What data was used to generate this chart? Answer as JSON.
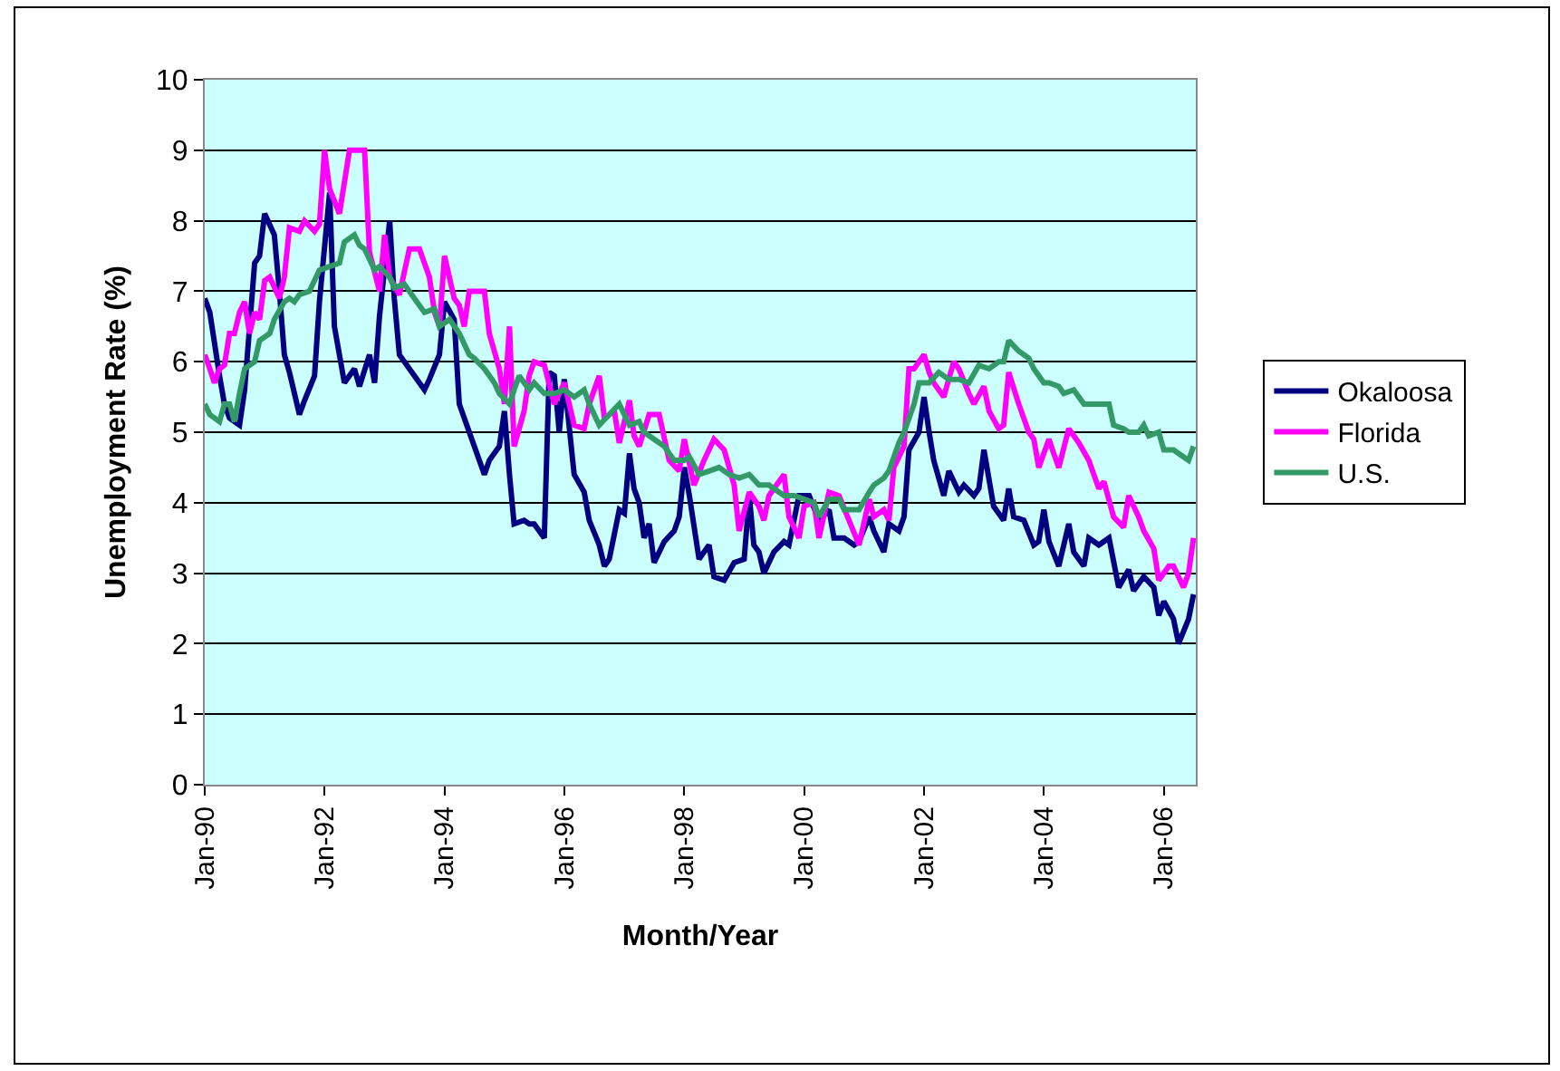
{
  "chart_data": {
    "type": "line",
    "xlabel": "Month/Year",
    "ylabel": "Unemployment Rate (%)",
    "ylim": [
      0,
      10
    ],
    "yticks": [
      0,
      1,
      2,
      3,
      4,
      5,
      6,
      7,
      8,
      9,
      10
    ],
    "xlim": [
      "1990-01-01",
      "2006-07-15"
    ],
    "xticks": [
      {
        "value": "1990-01",
        "label": "Jan-90"
      },
      {
        "value": "1992-01",
        "label": "Jan-92"
      },
      {
        "value": "1994-01",
        "label": "Jan-94"
      },
      {
        "value": "1996-01",
        "label": "Jan-96"
      },
      {
        "value": "1998-01",
        "label": "Jan-98"
      },
      {
        "value": "2000-01",
        "label": "Jan-00"
      },
      {
        "value": "2002-01",
        "label": "Jan-02"
      },
      {
        "value": "2004-01",
        "label": "Jan-04"
      },
      {
        "value": "2006-01",
        "label": "Jan-06"
      }
    ],
    "grid": "y",
    "legend": "right",
    "marker": "none",
    "line_style": "solid",
    "series": [
      {
        "name": "Okaloosa",
        "color": "#000080",
        "x": [
          "1990-01",
          "1990-02",
          "1990-04",
          "1990-05",
          "1990-06",
          "1990-08",
          "1990-09",
          "1990-11",
          "1990-12",
          "1991-01",
          "1991-03",
          "1991-04",
          "1991-05",
          "1991-06",
          "1991-08",
          "1991-09",
          "1991-11",
          "1991-12",
          "1992-02",
          "1992-03",
          "1992-05",
          "1992-07",
          "1992-08",
          "1992-10",
          "1992-11",
          "1992-12",
          "1993-02",
          "1993-03",
          "1993-04",
          "1993-06",
          "1993-09",
          "1993-10",
          "1993-12",
          "1994-01",
          "1994-03",
          "1994-04",
          "1994-06",
          "1994-09",
          "1994-10",
          "1994-12",
          "1995-01",
          "1995-02",
          "1995-03",
          "1995-05",
          "1995-06",
          "1995-07",
          "1995-09",
          "1995-10",
          "1995-11",
          "1995-12",
          "1996-01",
          "1996-03",
          "1996-05",
          "1996-06",
          "1996-08",
          "1996-09",
          "1996-10",
          "1996-12",
          "1997-01",
          "1997-02",
          "1997-03",
          "1997-04",
          "1997-05",
          "1997-06",
          "1997-07",
          "1997-09",
          "1997-11",
          "1997-12",
          "1998-01",
          "1998-02",
          "1998-04",
          "1998-06",
          "1998-07",
          "1998-09",
          "1998-11",
          "1999-01",
          "1999-02",
          "1999-03",
          "1999-04",
          "1999-05",
          "1999-07",
          "1999-09",
          "1999-10",
          "1999-12",
          "2000-02",
          "2000-04",
          "2000-06",
          "2000-07",
          "2000-09",
          "2000-11",
          "2000-12",
          "2001-02",
          "2001-03",
          "2001-05",
          "2001-06",
          "2001-08",
          "2001-09",
          "2001-10",
          "2001-12",
          "2002-01",
          "2002-02",
          "2002-03",
          "2002-05",
          "2002-06",
          "2002-08",
          "2002-09",
          "2002-11",
          "2002-12",
          "2003-01",
          "2003-03",
          "2003-05",
          "2003-06",
          "2003-07",
          "2003-09",
          "2003-11",
          "2003-12",
          "2004-01",
          "2004-02",
          "2004-04",
          "2004-06",
          "2004-07",
          "2004-09",
          "2004-10",
          "2004-12",
          "2005-02",
          "2005-04",
          "2005-06",
          "2005-07",
          "2005-09",
          "2005-11",
          "2005-12",
          "2006-01",
          "2006-03",
          "2006-04",
          "2006-06",
          "2006-07"
        ],
        "values": [
          6.9,
          6.7,
          5.8,
          5.4,
          5.2,
          5.1,
          5.6,
          7.4,
          7.5,
          8.1,
          7.8,
          7.0,
          6.1,
          5.85,
          5.25,
          5.45,
          5.8,
          6.85,
          8.4,
          6.5,
          5.7,
          5.9,
          5.65,
          6.1,
          5.7,
          6.65,
          8.0,
          6.9,
          6.1,
          5.9,
          5.6,
          5.75,
          6.1,
          6.85,
          6.6,
          5.4,
          5.0,
          4.4,
          4.6,
          4.8,
          5.3,
          4.4,
          3.7,
          3.75,
          3.7,
          3.7,
          3.5,
          5.85,
          5.8,
          5.0,
          5.75,
          4.4,
          4.15,
          3.75,
          3.4,
          3.1,
          3.2,
          3.9,
          3.85,
          4.7,
          4.2,
          4.0,
          3.5,
          3.7,
          3.15,
          3.45,
          3.6,
          3.8,
          4.5,
          4.1,
          3.2,
          3.4,
          2.95,
          2.9,
          3.15,
          3.2,
          4.1,
          3.4,
          3.3,
          3.0,
          3.3,
          3.45,
          3.4,
          4.1,
          4.1,
          3.75,
          3.9,
          3.5,
          3.5,
          3.4,
          3.45,
          3.8,
          3.6,
          3.3,
          3.7,
          3.6,
          3.8,
          4.75,
          5.0,
          5.5,
          5.0,
          4.6,
          4.1,
          4.45,
          4.15,
          4.25,
          4.1,
          4.2,
          4.75,
          3.95,
          3.75,
          4.2,
          3.8,
          3.75,
          3.4,
          3.45,
          3.9,
          3.45,
          3.1,
          3.7,
          3.3,
          3.1,
          3.5,
          3.4,
          3.5,
          2.8,
          3.05,
          2.75,
          2.95,
          2.8,
          2.4,
          2.6,
          2.35,
          2.0,
          2.35,
          2.7
        ]
      },
      {
        "name": "Florida",
        "color": "#ff00ff",
        "x": [
          "1990-01",
          "1990-02",
          "1990-03",
          "1990-04",
          "1990-05",
          "1990-06",
          "1990-07",
          "1990-08",
          "1990-09",
          "1990-10",
          "1990-11",
          "1990-12",
          "1991-01",
          "1991-02",
          "1991-04",
          "1991-05",
          "1991-06",
          "1991-08",
          "1991-09",
          "1991-11",
          "1991-12",
          "1992-01",
          "1992-02",
          "1992-04",
          "1992-06",
          "1992-09",
          "1992-10",
          "1992-12",
          "1993-01",
          "1993-02",
          "1993-04",
          "1993-06",
          "1993-08",
          "1993-10",
          "1993-11",
          "1993-12",
          "1994-01",
          "1994-03",
          "1994-04",
          "1994-05",
          "1994-06",
          "1994-09",
          "1994-10",
          "1994-12",
          "1995-01",
          "1995-02",
          "1995-03",
          "1995-04",
          "1995-05",
          "1995-06",
          "1995-07",
          "1995-09",
          "1995-11",
          "1996-01",
          "1996-03",
          "1996-05",
          "1996-06",
          "1996-08",
          "1996-09",
          "1996-11",
          "1996-12",
          "1997-02",
          "1997-03",
          "1997-04",
          "1997-06",
          "1997-08",
          "1997-10",
          "1997-12",
          "1998-01",
          "1998-03",
          "1998-05",
          "1998-07",
          "1998-09",
          "1998-11",
          "1998-12",
          "1999-02",
          "1999-04",
          "1999-05",
          "1999-06",
          "1999-09",
          "1999-10",
          "1999-12",
          "2000-01",
          "2000-03",
          "2000-04",
          "2000-06",
          "2000-08",
          "2000-10",
          "2000-12",
          "2001-02",
          "2001-03",
          "2001-05",
          "2001-06",
          "2001-07",
          "2001-09",
          "2001-10",
          "2001-11",
          "2002-01",
          "2002-02",
          "2002-03",
          "2002-05",
          "2002-07",
          "2002-08",
          "2002-10",
          "2002-11",
          "2003-01",
          "2003-02",
          "2003-04",
          "2003-05",
          "2003-06",
          "2003-08",
          "2003-10",
          "2003-11",
          "2003-12",
          "2004-02",
          "2004-03",
          "2004-04",
          "2004-06",
          "2004-08",
          "2004-10",
          "2004-12",
          "2005-01",
          "2005-03",
          "2005-05",
          "2005-06",
          "2005-08",
          "2005-09",
          "2005-11",
          "2005-12",
          "2006-02",
          "2006-03",
          "2006-05",
          "2006-06",
          "2006-07"
        ],
        "values": [
          6.1,
          5.9,
          5.7,
          5.9,
          5.95,
          6.4,
          6.4,
          6.7,
          6.85,
          6.4,
          6.7,
          6.6,
          7.15,
          7.2,
          6.9,
          7.2,
          7.9,
          7.85,
          8.0,
          7.85,
          7.95,
          9.0,
          8.45,
          8.1,
          9.0,
          9.0,
          7.55,
          7.0,
          7.8,
          7.2,
          6.95,
          7.6,
          7.6,
          7.2,
          6.7,
          6.5,
          7.5,
          6.9,
          6.8,
          6.5,
          7.0,
          7.0,
          6.4,
          5.9,
          5.4,
          6.5,
          4.8,
          5.05,
          5.3,
          5.8,
          6.0,
          5.95,
          5.4,
          5.7,
          5.1,
          5.05,
          5.4,
          5.8,
          5.2,
          5.3,
          4.85,
          5.45,
          4.95,
          4.8,
          5.25,
          5.25,
          4.6,
          4.45,
          4.9,
          4.25,
          4.6,
          4.9,
          4.75,
          4.25,
          3.6,
          4.15,
          3.95,
          3.75,
          4.1,
          4.4,
          3.8,
          3.5,
          3.95,
          4.0,
          3.5,
          4.15,
          4.1,
          3.75,
          3.4,
          4.05,
          3.8,
          3.9,
          3.75,
          4.5,
          4.8,
          5.9,
          5.9,
          6.1,
          5.85,
          5.7,
          5.5,
          6.0,
          5.9,
          5.55,
          5.4,
          5.65,
          5.3,
          5.05,
          5.1,
          5.85,
          5.4,
          5.0,
          4.9,
          4.5,
          4.9,
          4.7,
          4.5,
          5.05,
          4.85,
          4.6,
          4.2,
          4.3,
          3.8,
          3.65,
          4.1,
          3.8,
          3.6,
          3.35,
          2.9,
          3.1,
          3.1,
          2.8,
          3.0,
          3.5
        ]
      },
      {
        "name": "U.S.",
        "color": "#339966",
        "x": [
          "1990-01",
          "1990-02",
          "1990-04",
          "1990-05",
          "1990-06",
          "1990-07",
          "1990-08",
          "1990-09",
          "1990-11",
          "1990-12",
          "1991-02",
          "1991-03",
          "1991-05",
          "1991-06",
          "1991-07",
          "1991-08",
          "1991-10",
          "1991-12",
          "1992-02",
          "1992-04",
          "1992-05",
          "1992-07",
          "1992-08",
          "1992-09",
          "1992-11",
          "1992-12",
          "1993-02",
          "1993-03",
          "1993-05",
          "1993-07",
          "1993-09",
          "1993-11",
          "1993-12",
          "1994-02",
          "1994-04",
          "1994-06",
          "1994-07",
          "1994-09",
          "1994-11",
          "1994-12",
          "1995-02",
          "1995-03",
          "1995-04",
          "1995-06",
          "1995-07",
          "1995-09",
          "1995-11",
          "1996-01",
          "1996-03",
          "1996-05",
          "1996-06",
          "1996-08",
          "1996-10",
          "1996-12",
          "1997-02",
          "1997-04",
          "1997-05",
          "1997-07",
          "1997-09",
          "1997-11",
          "1998-01",
          "1998-02",
          "1998-04",
          "1998-06",
          "1998-08",
          "1998-10",
          "1998-12",
          "1999-02",
          "1999-04",
          "1999-06",
          "1999-07",
          "1999-09",
          "1999-11",
          "2000-01",
          "2000-03",
          "2000-04",
          "2000-06",
          "2000-08",
          "2000-09",
          "2000-11",
          "2000-12",
          "2001-02",
          "2001-03",
          "2001-05",
          "2001-06",
          "2001-08",
          "2001-09",
          "2001-11",
          "2001-12",
          "2002-02",
          "2002-04",
          "2002-06",
          "2002-08",
          "2002-10",
          "2002-12",
          "2003-02",
          "2003-04",
          "2003-05",
          "2003-06",
          "2003-08",
          "2003-10",
          "2003-11",
          "2004-01",
          "2004-02",
          "2004-04",
          "2004-05",
          "2004-07",
          "2004-09",
          "2004-10",
          "2004-12",
          "2005-02",
          "2005-03",
          "2005-05",
          "2005-06",
          "2005-08",
          "2005-09",
          "2005-10",
          "2005-12",
          "2006-01",
          "2006-03",
          "2006-05",
          "2006-06",
          "2006-07"
        ],
        "values": [
          5.4,
          5.25,
          5.15,
          5.4,
          5.4,
          5.15,
          5.55,
          5.9,
          6.0,
          6.3,
          6.4,
          6.6,
          6.85,
          6.9,
          6.85,
          6.95,
          7.0,
          7.3,
          7.35,
          7.4,
          7.7,
          7.8,
          7.65,
          7.6,
          7.3,
          7.35,
          7.2,
          7.05,
          7.1,
          6.9,
          6.7,
          6.75,
          6.5,
          6.6,
          6.4,
          6.1,
          6.05,
          5.9,
          5.7,
          5.55,
          5.4,
          5.6,
          5.8,
          5.6,
          5.7,
          5.55,
          5.55,
          5.6,
          5.5,
          5.6,
          5.4,
          5.1,
          5.25,
          5.4,
          5.1,
          5.15,
          5.0,
          4.9,
          4.8,
          4.6,
          4.6,
          4.65,
          4.4,
          4.45,
          4.5,
          4.4,
          4.35,
          4.4,
          4.25,
          4.25,
          4.2,
          4.1,
          4.1,
          4.05,
          4.0,
          3.8,
          4.05,
          4.05,
          3.9,
          3.9,
          3.9,
          4.15,
          4.25,
          4.35,
          4.45,
          4.85,
          5.0,
          5.4,
          5.7,
          5.7,
          5.85,
          5.75,
          5.75,
          5.7,
          5.95,
          5.9,
          6.0,
          6.0,
          6.3,
          6.15,
          6.05,
          5.9,
          5.7,
          5.7,
          5.65,
          5.55,
          5.6,
          5.4,
          5.4,
          5.4,
          5.4,
          5.1,
          5.05,
          5.0,
          5.0,
          5.1,
          4.95,
          5.0,
          4.75,
          4.75,
          4.65,
          4.6,
          4.8
        ]
      }
    ]
  }
}
